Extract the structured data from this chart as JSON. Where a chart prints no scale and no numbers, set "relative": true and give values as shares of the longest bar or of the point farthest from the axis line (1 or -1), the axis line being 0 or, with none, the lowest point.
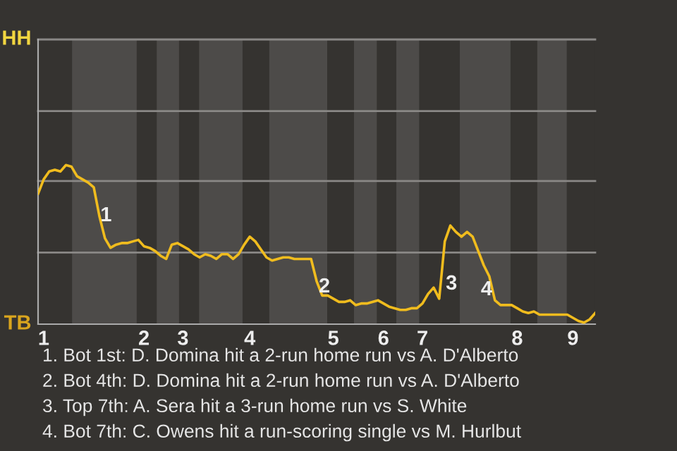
{
  "chart_data": {
    "type": "line",
    "relative": true,
    "categories": [
      null,
      "1",
      null,
      null,
      null,
      null,
      null,
      null,
      null,
      null,
      null,
      null,
      null,
      null,
      null,
      null,
      null,
      null,
      null,
      "2",
      null,
      null,
      null,
      null,
      null,
      null,
      "3",
      null,
      null,
      null,
      null,
      null,
      null,
      null,
      null,
      null,
      null,
      null,
      "4",
      null,
      null,
      null,
      null,
      null,
      null,
      null,
      null,
      null,
      null,
      null,
      null,
      null,
      null,
      "5",
      null,
      null,
      null,
      null,
      null,
      null,
      null,
      null,
      "6",
      null,
      null,
      null,
      null,
      null,
      null,
      "7",
      null,
      null,
      null,
      null,
      null,
      null,
      null,
      null,
      null,
      null,
      null,
      null,
      null,
      null,
      null,
      null,
      "8",
      null,
      null,
      null,
      null,
      null,
      null,
      null,
      null,
      null,
      "9",
      null,
      null,
      null,
      null
    ],
    "legend": false,
    "marker": "none",
    "line_style": "solid",
    "series": [
      {
        "color": "#f0bc1e",
        "values": [
          0.82,
          0.91,
          0.96,
          0.97,
          0.96,
          1.0,
          0.99,
          0.93,
          0.91,
          0.89,
          0.86,
          0.68,
          0.54,
          0.48,
          0.5,
          0.51,
          0.51,
          0.52,
          0.53,
          0.49,
          0.48,
          0.46,
          0.43,
          0.41,
          0.5,
          0.51,
          0.49,
          0.47,
          0.44,
          0.42,
          0.44,
          0.43,
          0.41,
          0.44,
          0.44,
          0.41,
          0.44,
          0.5,
          0.55,
          0.52,
          0.47,
          0.42,
          0.4,
          0.41,
          0.42,
          0.42,
          0.41,
          0.41,
          0.41,
          0.41,
          0.27,
          0.18,
          0.18,
          0.16,
          0.14,
          0.14,
          0.15,
          0.12,
          0.13,
          0.13,
          0.14,
          0.15,
          0.13,
          0.11,
          0.1,
          0.09,
          0.09,
          0.1,
          0.1,
          0.13,
          0.19,
          0.23,
          0.16,
          0.52,
          0.62,
          0.58,
          0.55,
          0.58,
          0.55,
          0.46,
          0.37,
          0.3,
          0.15,
          0.12,
          0.12,
          0.12,
          0.1,
          0.08,
          0.07,
          0.08,
          0.06,
          0.06,
          0.06,
          0.06,
          0.06,
          0.06,
          0.04,
          0.02,
          0.01,
          0.03,
          0.07
        ],
        "name": null
      }
    ],
    "ref_lines": [
      {
        "axis": "y",
        "value": 0.45,
        "color": "#8a8886"
      },
      {
        "axis": "y",
        "value": 0.9,
        "color": "#8a8886"
      },
      {
        "axis": "y",
        "value": 1.34,
        "color": "#8a8886"
      },
      {
        "axis": "y",
        "value": 1.79,
        "color": "#8a8886"
      }
    ],
    "annotations": [
      "HH",
      "TB",
      "1",
      "2",
      "3",
      "4",
      "1. Bot 1st: D. Domina hit a 2-run home run vs A. D'Alberto",
      "2. Bot 4th: D. Domina hit a 2-run home run vs A. D'Alberto",
      "3. Top 7th: A. Sera hit a 3-run home run vs S. White",
      "4. Bot 7th: C. Owens hit a run-scoring single vs M. Hurlbut"
    ]
  }
}
